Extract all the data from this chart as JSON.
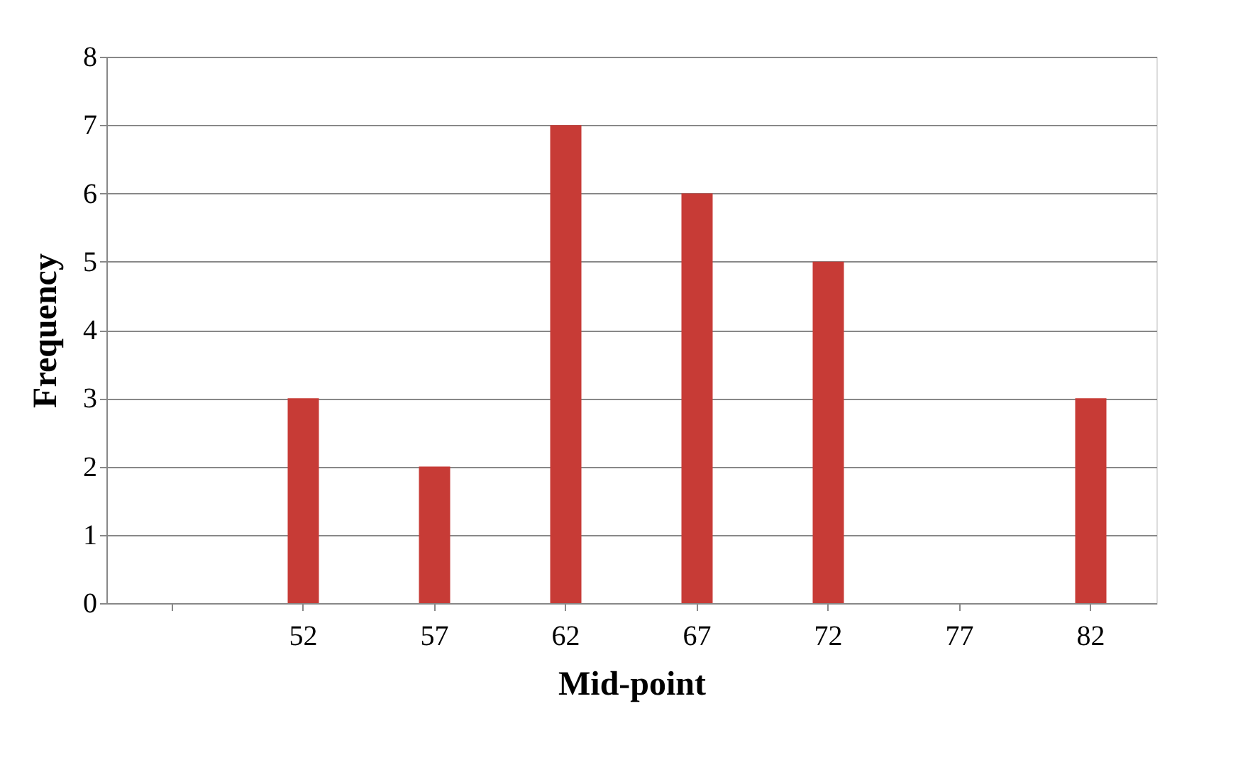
{
  "chart_data": {
    "type": "bar",
    "xlabel": "Mid-point",
    "ylabel": "Frequency",
    "categories": [
      null,
      "52",
      "57",
      "62",
      "67",
      "72",
      "77",
      "82"
    ],
    "values": [
      null,
      3,
      2,
      7,
      6,
      5,
      0,
      3
    ],
    "color": "#c73b36",
    "ylim": [
      0,
      8
    ],
    "yticks": [
      0,
      1,
      2,
      3,
      4,
      5,
      6,
      7,
      8
    ],
    "grid": "y"
  }
}
